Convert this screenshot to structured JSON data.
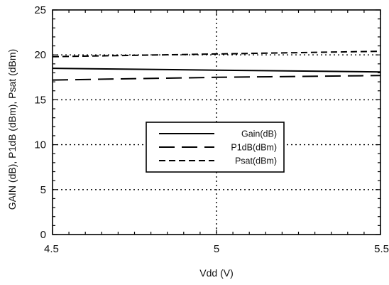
{
  "chart_data": {
    "type": "line",
    "title": "",
    "xlabel": "Vdd (V)",
    "ylabel": "GAIN (dB), P1dB (dBm), Psat (dBm)",
    "xlim": [
      4.5,
      5.5
    ],
    "ylim": [
      0,
      25
    ],
    "x_ticks": [
      4.5,
      5,
      5.5
    ],
    "x_tick_labels": [
      "4.5",
      "5",
      "5.5"
    ],
    "y_ticks": [
      0,
      5,
      10,
      15,
      20,
      25
    ],
    "y_tick_labels": [
      "0",
      "5",
      "10",
      "15",
      "20",
      "25"
    ],
    "grid": "dotted",
    "legend_position": "center",
    "series": [
      {
        "name": "Gain(dB)",
        "style": "solid",
        "x": [
          4.5,
          5.0,
          5.5
        ],
        "y": [
          18.5,
          18.3,
          18.1
        ]
      },
      {
        "name": "P1dB(dBm)",
        "style": "long-dash",
        "x": [
          4.5,
          5.0,
          5.5
        ],
        "y": [
          17.2,
          17.5,
          17.7
        ]
      },
      {
        "name": "Psat(dBm)",
        "style": "short-dash",
        "x": [
          4.5,
          5.0,
          5.5
        ],
        "y": [
          19.8,
          20.1,
          20.4
        ]
      }
    ]
  }
}
